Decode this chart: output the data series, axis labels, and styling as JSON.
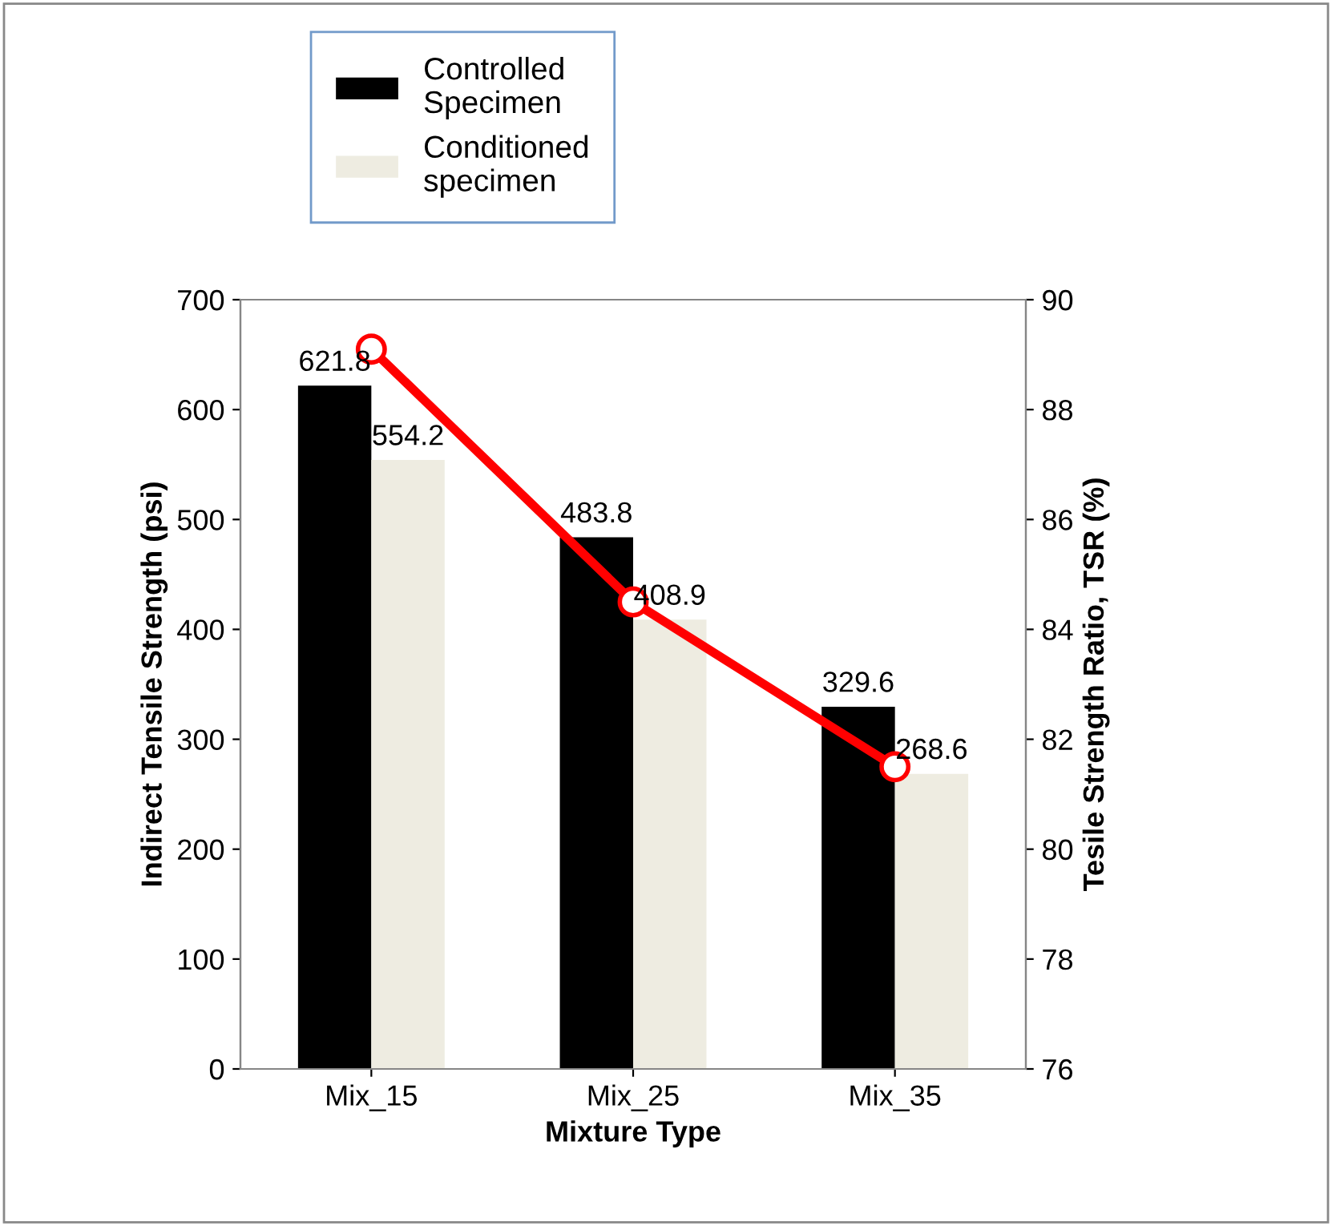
{
  "chart_data": {
    "type": "bar",
    "categories": [
      "Mix_15",
      "Mix_25",
      "Mix_35"
    ],
    "xlabel": "Mixture Type",
    "ylabel": "Indirect Tensile Strength (psi)",
    "y2label": "Tesile Strength Ratio, TSR (%)",
    "series": [
      {
        "name": "Controlled Specimen",
        "color": "#000000",
        "values": [
          621.8,
          483.8,
          329.6
        ],
        "data_labels": true
      },
      {
        "name": "Conditioned specimen",
        "color": "#eeece1",
        "values": [
          554.2,
          408.9,
          268.6
        ],
        "data_labels": true
      },
      {
        "type": "line",
        "axis": "y2",
        "color": "#ff0000",
        "values": [
          89.1,
          84.5,
          81.5
        ],
        "marker": "circle"
      }
    ],
    "ylim": [
      0,
      700
    ],
    "yticks": [
      0,
      100,
      200,
      300,
      400,
      500,
      600,
      700
    ],
    "y2lim": [
      76,
      90
    ],
    "y2ticks": [
      76,
      78,
      80,
      82,
      84,
      86,
      88,
      90
    ],
    "grid": false,
    "legend": "top"
  }
}
